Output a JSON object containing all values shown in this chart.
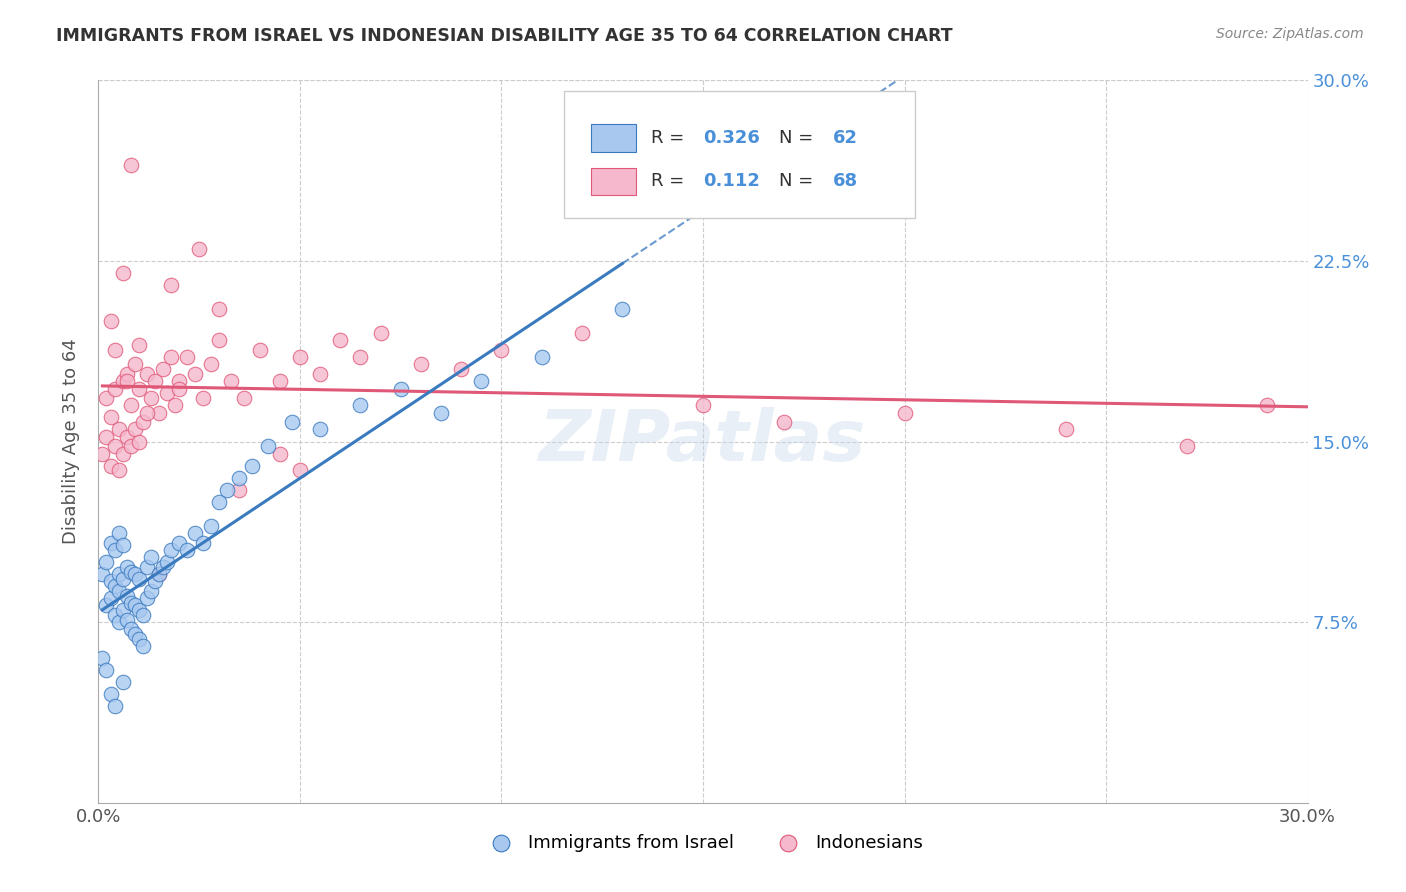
{
  "title": "IMMIGRANTS FROM ISRAEL VS INDONESIAN DISABILITY AGE 35 TO 64 CORRELATION CHART",
  "source": "Source: ZipAtlas.com",
  "ylabel": "Disability Age 35 to 64",
  "xlim": [
    0.0,
    0.3
  ],
  "ylim": [
    0.0,
    0.3
  ],
  "color_israel": "#a8c8f0",
  "color_indonesian": "#f5b8cc",
  "line_color_israel": "#3a7abf",
  "line_color_indonesian": "#e05878",
  "watermark": "ZIPatlas",
  "israel_scatter_x": [
    0.001,
    0.002,
    0.002,
    0.003,
    0.003,
    0.003,
    0.004,
    0.004,
    0.004,
    0.005,
    0.005,
    0.005,
    0.005,
    0.006,
    0.006,
    0.006,
    0.007,
    0.007,
    0.007,
    0.008,
    0.008,
    0.008,
    0.009,
    0.009,
    0.009,
    0.01,
    0.01,
    0.01,
    0.011,
    0.011,
    0.012,
    0.012,
    0.013,
    0.013,
    0.014,
    0.015,
    0.016,
    0.017,
    0.018,
    0.02,
    0.022,
    0.024,
    0.026,
    0.028,
    0.03,
    0.032,
    0.035,
    0.038,
    0.042,
    0.048,
    0.055,
    0.065,
    0.075,
    0.085,
    0.095,
    0.11,
    0.13,
    0.001,
    0.002,
    0.003,
    0.004,
    0.006
  ],
  "israel_scatter_y": [
    0.095,
    0.082,
    0.1,
    0.085,
    0.092,
    0.108,
    0.078,
    0.09,
    0.105,
    0.075,
    0.088,
    0.095,
    0.112,
    0.08,
    0.093,
    0.107,
    0.076,
    0.086,
    0.098,
    0.072,
    0.083,
    0.096,
    0.07,
    0.082,
    0.095,
    0.068,
    0.08,
    0.093,
    0.065,
    0.078,
    0.085,
    0.098,
    0.088,
    0.102,
    0.092,
    0.095,
    0.098,
    0.1,
    0.105,
    0.108,
    0.105,
    0.112,
    0.108,
    0.115,
    0.125,
    0.13,
    0.135,
    0.14,
    0.148,
    0.158,
    0.155,
    0.165,
    0.172,
    0.162,
    0.175,
    0.185,
    0.205,
    0.06,
    0.055,
    0.045,
    0.04,
    0.05
  ],
  "indonesian_scatter_x": [
    0.001,
    0.002,
    0.002,
    0.003,
    0.003,
    0.004,
    0.004,
    0.005,
    0.005,
    0.006,
    0.006,
    0.007,
    0.007,
    0.008,
    0.008,
    0.009,
    0.009,
    0.01,
    0.01,
    0.011,
    0.012,
    0.013,
    0.014,
    0.015,
    0.016,
    0.017,
    0.018,
    0.019,
    0.02,
    0.022,
    0.024,
    0.026,
    0.028,
    0.03,
    0.033,
    0.036,
    0.04,
    0.045,
    0.05,
    0.055,
    0.06,
    0.065,
    0.07,
    0.08,
    0.09,
    0.1,
    0.12,
    0.15,
    0.17,
    0.2,
    0.24,
    0.27,
    0.29,
    0.035,
    0.015,
    0.008,
    0.025,
    0.045,
    0.003,
    0.006,
    0.01,
    0.018,
    0.03,
    0.05,
    0.004,
    0.007,
    0.012,
    0.02
  ],
  "indonesian_scatter_y": [
    0.145,
    0.152,
    0.168,
    0.14,
    0.16,
    0.148,
    0.172,
    0.138,
    0.155,
    0.145,
    0.175,
    0.152,
    0.178,
    0.148,
    0.165,
    0.155,
    0.182,
    0.15,
    0.172,
    0.158,
    0.178,
    0.168,
    0.175,
    0.162,
    0.18,
    0.17,
    0.185,
    0.165,
    0.175,
    0.185,
    0.178,
    0.168,
    0.182,
    0.192,
    0.175,
    0.168,
    0.188,
    0.175,
    0.185,
    0.178,
    0.192,
    0.185,
    0.195,
    0.182,
    0.18,
    0.188,
    0.195,
    0.165,
    0.158,
    0.162,
    0.155,
    0.148,
    0.165,
    0.13,
    0.095,
    0.265,
    0.23,
    0.145,
    0.2,
    0.22,
    0.19,
    0.215,
    0.205,
    0.138,
    0.188,
    0.175,
    0.162,
    0.172
  ],
  "israel_line_x_start": 0.001,
  "israel_line_x_solid_end": 0.13,
  "israel_line_x_dashed_end": 0.3,
  "indonesian_line_x_start": 0.001,
  "indonesian_line_x_end": 0.3
}
